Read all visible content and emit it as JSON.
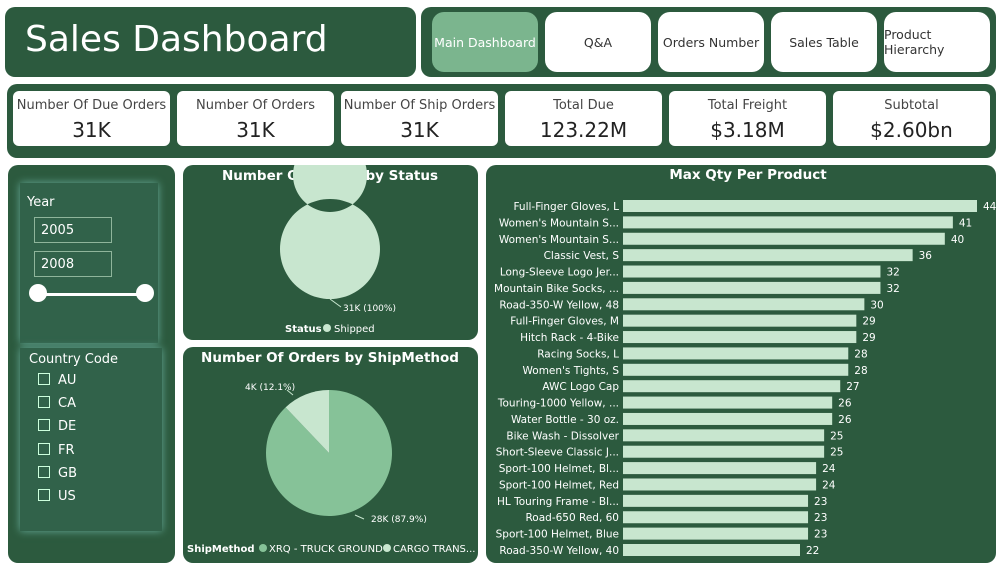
{
  "header": {
    "title": "Sales Dashboard"
  },
  "nav": [
    "Main Dashboard",
    "Q&A",
    "Orders Number",
    "Sales Table",
    "Product Hierarchy"
  ],
  "kpis": [
    {
      "label": "Number Of Due Orders",
      "value": "31K"
    },
    {
      "label": "Number Of Orders",
      "value": "31K"
    },
    {
      "label": "Number Of Ship Orders",
      "value": "31K"
    },
    {
      "label": "Total Due",
      "value": "123.22M"
    },
    {
      "label": "Total Freight",
      "value": "$3.18M"
    },
    {
      "label": "Subtotal",
      "value": "$2.60bn"
    }
  ],
  "filters": {
    "year": {
      "title": "Year",
      "from": "2005",
      "to": "2008"
    },
    "country": {
      "title": "Country Code",
      "options": [
        "AU",
        "CA",
        "DE",
        "FR",
        "GB",
        "US"
      ]
    }
  },
  "chart_data": [
    {
      "type": "donut",
      "title": "Number Of Orders by Status",
      "legend_title": "Status",
      "categories": [
        "Shipped"
      ],
      "values": [
        100
      ],
      "value_labels": [
        "31K (100%)"
      ],
      "colors": [
        "#c8e6cf"
      ]
    },
    {
      "type": "pie",
      "title": "Number Of Orders by ShipMethod",
      "legend_title": "ShipMethod",
      "categories": [
        "XRQ - TRUCK GROUND",
        "CARGO TRANS..."
      ],
      "values": [
        87.9,
        12.1
      ],
      "value_labels": [
        "28K (87.9%)",
        "4K (12.1%)"
      ],
      "colors": [
        "#86c298",
        "#c8e6cf"
      ]
    },
    {
      "type": "hbar",
      "title": "Max Qty Per Product",
      "color": "#c8e6cf",
      "categories": [
        "Full-Finger Gloves, L",
        "Women's Mountain S...",
        "Women's Mountain S...",
        "Classic Vest, S",
        "Long-Sleeve Logo Jer...",
        "Mountain Bike Socks, ...",
        "Road-350-W Yellow, 48",
        "Full-Finger Gloves, M",
        "Hitch Rack - 4-Bike",
        "Racing Socks, L",
        "Women's Tights, S",
        "AWC Logo Cap",
        "Touring-1000 Yellow, ...",
        "Water Bottle - 30 oz.",
        "Bike Wash - Dissolver",
        "Short-Sleeve Classic J...",
        "Sport-100 Helmet, Bl...",
        "Sport-100 Helmet, Red",
        "HL Touring Frame - Bl...",
        "Road-650 Red, 60",
        "Sport-100 Helmet, Blue",
        "Road-350-W Yellow, 40"
      ],
      "values": [
        44,
        41,
        40,
        36,
        32,
        32,
        30,
        29,
        29,
        28,
        28,
        27,
        26,
        26,
        25,
        25,
        24,
        24,
        23,
        23,
        23,
        22
      ]
    }
  ]
}
